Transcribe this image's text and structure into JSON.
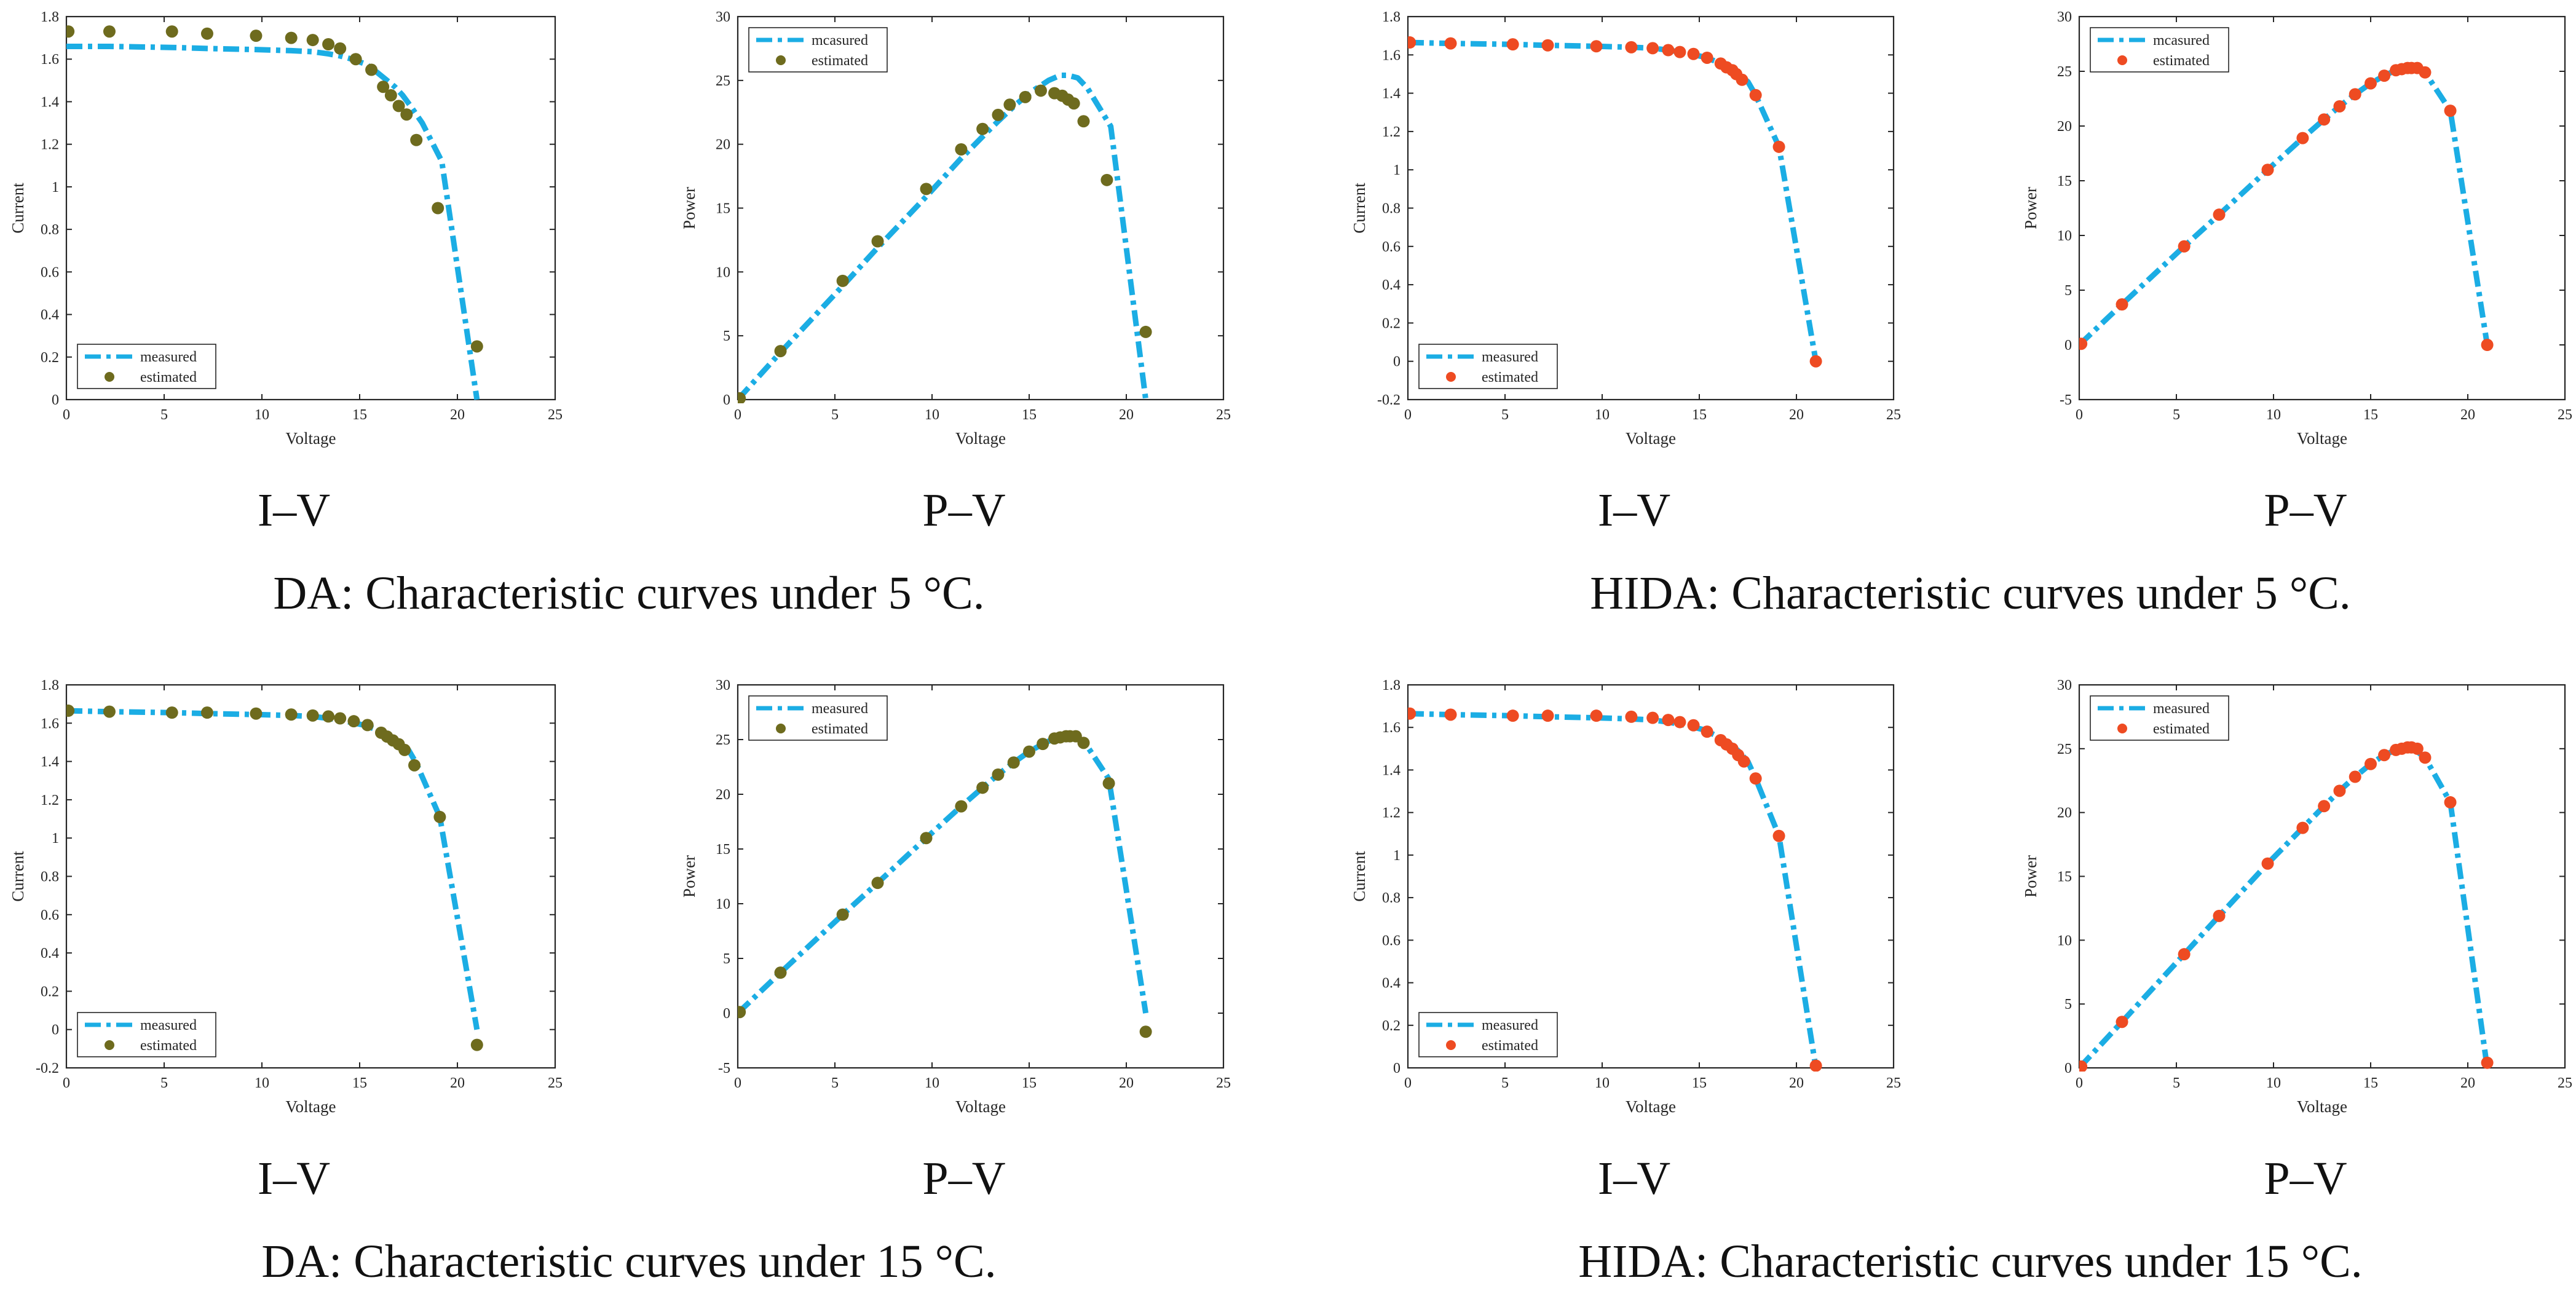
{
  "colors": {
    "measured": "#1BADE4",
    "estimated_da": "#6E6B1E",
    "estimated_hida": "#EE4B22",
    "axis": "#262626"
  },
  "groups": [
    {
      "caption": "DA: Characteristic curves under 5 °C.",
      "sublabels": [
        "I–V",
        "P–V"
      ]
    },
    {
      "caption": "HIDA: Characteristic curves under 5 °C.",
      "sublabels": [
        "I–V",
        "P–V"
      ]
    },
    {
      "caption": "DA: Characteristic curves under 15 °C.",
      "sublabels": [
        "I–V",
        "P–V"
      ]
    },
    {
      "caption": "HIDA: Characteristic curves under 15 °C.",
      "sublabels": [
        "I–V",
        "P–V"
      ]
    }
  ],
  "chart_data": [
    {
      "id": "da-5c-iv",
      "type": "line",
      "title": "",
      "xlabel": "Voltage",
      "ylabel": "Current",
      "xlim": [
        0,
        25
      ],
      "ylim": [
        0,
        1.8
      ],
      "xticks": [
        "0",
        "5",
        "10",
        "15",
        "20",
        "25"
      ],
      "yticks": [
        "0",
        "0.2",
        "0.4",
        "0.6",
        "0.8",
        "1",
        "1.2",
        "1.4",
        "1.6",
        "1.8"
      ],
      "legend_position": "bottom-left",
      "estimated_color": "#6E6B1E",
      "series": [
        {
          "name": "measured",
          "style": "dash-dot",
          "x": [
            0,
            2.2,
            5.4,
            7.2,
            9.7,
            11.5,
            12.6,
            13.4,
            14,
            14.6,
            15.2,
            15.6,
            16,
            16.4,
            16.8,
            17.2,
            17.6,
            18.2,
            19.2,
            21
          ],
          "y": [
            1.66,
            1.66,
            1.655,
            1.65,
            1.645,
            1.64,
            1.635,
            1.625,
            1.615,
            1.6,
            1.58,
            1.56,
            1.53,
            1.5,
            1.47,
            1.43,
            1.38,
            1.3,
            1.12,
            0
          ]
        },
        {
          "name": "estimated",
          "style": "marker",
          "x": [
            0.1,
            2.2,
            5.4,
            7.2,
            9.7,
            11.5,
            12.6,
            13.4,
            14,
            14.8,
            15.6,
            16.2,
            16.6,
            17,
            17.4,
            17.9,
            19,
            21
          ],
          "y": [
            1.73,
            1.73,
            1.73,
            1.72,
            1.71,
            1.7,
            1.69,
            1.67,
            1.65,
            1.6,
            1.55,
            1.47,
            1.43,
            1.38,
            1.34,
            1.22,
            0.9,
            0.25
          ]
        }
      ]
    },
    {
      "id": "da-5c-pv",
      "type": "line",
      "title": "",
      "xlabel": "Voltage",
      "ylabel": "Power",
      "xlim": [
        0,
        25
      ],
      "ylim": [
        0,
        30
      ],
      "xticks": [
        "0",
        "5",
        "10",
        "15",
        "20",
        "25"
      ],
      "yticks": [
        "0",
        "5",
        "10",
        "15",
        "20",
        "25",
        "30"
      ],
      "legend_position": "top-left",
      "estimated_color": "#6E6B1E",
      "series": [
        {
          "name": "mcasured",
          "style": "dash-dot",
          "x": [
            0,
            2.2,
            5.4,
            7.2,
            9.7,
            11.5,
            12.6,
            13.4,
            14.3,
            15.2,
            16,
            16.6,
            17,
            17.5,
            18,
            19.2,
            21
          ],
          "y": [
            0,
            3.7,
            8.9,
            11.9,
            15.9,
            18.9,
            20.6,
            21.8,
            23.1,
            24.2,
            25,
            25.4,
            25.4,
            25.2,
            24.4,
            21.4,
            0
          ]
        },
        {
          "name": "estimated",
          "style": "marker",
          "x": [
            0.1,
            2.2,
            5.4,
            7.2,
            9.7,
            11.5,
            12.6,
            13.4,
            14,
            14.8,
            15.6,
            16.3,
            16.7,
            17,
            17.3,
            17.8,
            19,
            21
          ],
          "y": [
            0.1,
            3.8,
            9.3,
            12.4,
            16.5,
            19.6,
            21.2,
            22.3,
            23.1,
            23.7,
            24.2,
            24,
            23.8,
            23.5,
            23.2,
            21.8,
            17.2,
            5.3
          ]
        }
      ]
    },
    {
      "id": "hida-5c-iv",
      "type": "line",
      "title": "",
      "xlabel": "Voltage",
      "ylabel": "Current",
      "xlim": [
        0,
        25
      ],
      "ylim": [
        -0.2,
        1.8
      ],
      "xticks": [
        "0",
        "5",
        "10",
        "15",
        "20",
        "25"
      ],
      "yticks": [
        "-0.2",
        "0",
        "0.2",
        "0.4",
        "0.6",
        "0.8",
        "1",
        "1.2",
        "1.4",
        "1.6",
        "1.8"
      ],
      "legend_position": "bottom-left",
      "estimated_color": "#EE4B22",
      "series": [
        {
          "name": "measured",
          "style": "dash-dot",
          "x": [
            0,
            2.2,
            5.4,
            7.2,
            9.7,
            11.5,
            12.6,
            13.4,
            14.3,
            15.2,
            15.9,
            16.5,
            17,
            17.5,
            17.9,
            19.1,
            21
          ],
          "y": [
            1.665,
            1.66,
            1.655,
            1.65,
            1.645,
            1.64,
            1.635,
            1.625,
            1.61,
            1.59,
            1.565,
            1.535,
            1.5,
            1.46,
            1.39,
            1.12,
            0
          ]
        },
        {
          "name": "estimated",
          "style": "marker",
          "x": [
            0.1,
            2.2,
            5.4,
            7.2,
            9.7,
            11.5,
            12.6,
            13.4,
            14,
            14.7,
            15.4,
            16.1,
            16.4,
            16.7,
            16.9,
            17.2,
            17.9,
            19.1,
            21
          ],
          "y": [
            1.665,
            1.66,
            1.655,
            1.65,
            1.645,
            1.64,
            1.635,
            1.625,
            1.615,
            1.605,
            1.585,
            1.555,
            1.535,
            1.52,
            1.5,
            1.47,
            1.39,
            1.12,
            0
          ]
        }
      ]
    },
    {
      "id": "hida-5c-pv",
      "type": "line",
      "title": "",
      "xlabel": "Voltage",
      "ylabel": "Power",
      "xlim": [
        0,
        25
      ],
      "ylim": [
        -5,
        30
      ],
      "xticks": [
        "0",
        "5",
        "10",
        "15",
        "20",
        "25"
      ],
      "yticks": [
        "-5",
        "0",
        "5",
        "10",
        "15",
        "20",
        "25",
        "30"
      ],
      "legend_position": "top-left",
      "estimated_color": "#EE4B22",
      "series": [
        {
          "name": "mcasured",
          "style": "dash-dot",
          "x": [
            0,
            2.2,
            5.4,
            7.2,
            9.7,
            11.5,
            12.6,
            13.4,
            14.2,
            15,
            15.7,
            16.3,
            16.8,
            17.2,
            17.8,
            19.1,
            21
          ],
          "y": [
            0,
            3.7,
            9,
            11.9,
            16,
            18.9,
            20.6,
            21.8,
            22.9,
            23.9,
            24.6,
            25.1,
            25.3,
            25.3,
            24.9,
            21.4,
            0
          ]
        },
        {
          "name": "estimated",
          "style": "marker",
          "x": [
            0.1,
            2.2,
            5.4,
            7.2,
            9.7,
            11.5,
            12.6,
            13.4,
            14.2,
            15,
            15.7,
            16.3,
            16.6,
            16.9,
            17.1,
            17.4,
            17.8,
            19.1,
            21
          ],
          "y": [
            0.1,
            3.7,
            9,
            11.9,
            16,
            18.9,
            20.6,
            21.8,
            22.9,
            23.9,
            24.6,
            25.1,
            25.2,
            25.3,
            25.3,
            25.3,
            24.9,
            21.4,
            0
          ]
        }
      ]
    },
    {
      "id": "da-15c-iv",
      "type": "line",
      "title": "",
      "xlabel": "Voltage",
      "ylabel": "Current",
      "xlim": [
        0,
        25
      ],
      "ylim": [
        -0.2,
        1.8
      ],
      "xticks": [
        "0",
        "5",
        "10",
        "15",
        "20",
        "25"
      ],
      "yticks": [
        "-0.2",
        "0",
        "0.2",
        "0.4",
        "0.6",
        "0.8",
        "1",
        "1.2",
        "1.4",
        "1.6",
        "1.8"
      ],
      "legend_position": "bottom-left",
      "estimated_color": "#6E6B1E",
      "series": [
        {
          "name": "measured",
          "style": "dash-dot",
          "x": [
            0,
            2.2,
            5.4,
            7.2,
            9.7,
            11.5,
            12.6,
            13.4,
            14.3,
            15.2,
            15.9,
            16.5,
            17,
            17.5,
            17.9,
            19.1,
            21
          ],
          "y": [
            1.665,
            1.66,
            1.655,
            1.65,
            1.645,
            1.64,
            1.635,
            1.625,
            1.61,
            1.59,
            1.565,
            1.535,
            1.5,
            1.46,
            1.39,
            1.11,
            0
          ]
        },
        {
          "name": "estimated",
          "style": "marker",
          "x": [
            0.1,
            2.2,
            5.4,
            7.2,
            9.7,
            11.5,
            12.6,
            13.4,
            14,
            14.7,
            15.4,
            16.1,
            16.4,
            16.7,
            17,
            17.3,
            17.8,
            19.1,
            21
          ],
          "y": [
            1.665,
            1.66,
            1.655,
            1.655,
            1.65,
            1.645,
            1.64,
            1.635,
            1.625,
            1.61,
            1.59,
            1.55,
            1.53,
            1.51,
            1.49,
            1.46,
            1.38,
            1.11,
            -0.08
          ]
        }
      ]
    },
    {
      "id": "da-15c-pv",
      "type": "line",
      "title": "",
      "xlabel": "Voltage",
      "ylabel": "Power",
      "xlim": [
        0,
        25
      ],
      "ylim": [
        -5,
        30
      ],
      "xticks": [
        "0",
        "5",
        "10",
        "15",
        "20",
        "25"
      ],
      "yticks": [
        "-5",
        "0",
        "5",
        "10",
        "15",
        "20",
        "25",
        "30"
      ],
      "legend_position": "top-left",
      "estimated_color": "#6E6B1E",
      "series": [
        {
          "name": "measured",
          "style": "dash-dot",
          "x": [
            0,
            2.2,
            5.4,
            7.2,
            9.7,
            11.5,
            12.6,
            13.4,
            14.2,
            15,
            15.7,
            16.3,
            16.8,
            17.2,
            17.8,
            19.1,
            21
          ],
          "y": [
            0,
            3.7,
            9,
            11.9,
            16,
            18.9,
            20.6,
            21.8,
            22.9,
            23.9,
            24.6,
            25.1,
            25.3,
            25.3,
            24.9,
            21.4,
            0
          ]
        },
        {
          "name": "estimated",
          "style": "marker",
          "x": [
            0.1,
            2.2,
            5.4,
            7.2,
            9.7,
            11.5,
            12.6,
            13.4,
            14.2,
            15,
            15.7,
            16.3,
            16.6,
            16.9,
            17.1,
            17.4,
            17.8,
            19.1,
            21
          ],
          "y": [
            0.1,
            3.7,
            9,
            11.9,
            16,
            18.9,
            20.6,
            21.8,
            22.9,
            23.9,
            24.6,
            25.1,
            25.2,
            25.3,
            25.3,
            25.3,
            24.7,
            21,
            -1.7
          ]
        }
      ]
    },
    {
      "id": "hida-15c-iv",
      "type": "line",
      "title": "",
      "xlabel": "Voltage",
      "ylabel": "Current",
      "xlim": [
        0,
        25
      ],
      "ylim": [
        0,
        1.8
      ],
      "xticks": [
        "0",
        "5",
        "10",
        "15",
        "20",
        "25"
      ],
      "yticks": [
        "0",
        "0.2",
        "0.4",
        "0.6",
        "0.8",
        "1",
        "1.2",
        "1.4",
        "1.6",
        "1.8"
      ],
      "legend_position": "bottom-left",
      "estimated_color": "#EE4B22",
      "series": [
        {
          "name": "measured",
          "style": "dash-dot",
          "x": [
            0,
            2.2,
            5.4,
            7.2,
            9.7,
            11.5,
            12.6,
            13.4,
            14.3,
            15.2,
            15.9,
            16.5,
            17,
            17.5,
            17.9,
            19.1,
            21
          ],
          "y": [
            1.665,
            1.66,
            1.655,
            1.65,
            1.645,
            1.64,
            1.635,
            1.625,
            1.61,
            1.59,
            1.56,
            1.53,
            1.49,
            1.44,
            1.36,
            1.09,
            0
          ]
        },
        {
          "name": "estimated",
          "style": "marker",
          "x": [
            0.1,
            2.2,
            5.4,
            7.2,
            9.7,
            11.5,
            12.6,
            13.4,
            14,
            14.7,
            15.4,
            16.1,
            16.4,
            16.7,
            17,
            17.3,
            17.9,
            19.1,
            21
          ],
          "y": [
            1.665,
            1.66,
            1.655,
            1.655,
            1.655,
            1.65,
            1.645,
            1.635,
            1.625,
            1.61,
            1.58,
            1.54,
            1.52,
            1.5,
            1.47,
            1.44,
            1.36,
            1.09,
            0.01
          ]
        }
      ]
    },
    {
      "id": "hida-15c-pv",
      "type": "line",
      "title": "",
      "xlabel": "Voltage",
      "ylabel": "Power",
      "xlim": [
        0,
        25
      ],
      "ylim": [
        0,
        30
      ],
      "xticks": [
        "0",
        "5",
        "10",
        "15",
        "20",
        "25"
      ],
      "yticks": [
        "0",
        "5",
        "10",
        "15",
        "20",
        "25",
        "30"
      ],
      "legend_position": "top-left",
      "estimated_color": "#EE4B22",
      "series": [
        {
          "name": "measured",
          "style": "dash-dot",
          "x": [
            0,
            2.2,
            5.4,
            7.2,
            9.7,
            11.5,
            12.6,
            13.4,
            14.2,
            15,
            15.7,
            16.3,
            16.8,
            17.2,
            17.8,
            19.1,
            21
          ],
          "y": [
            0,
            3.6,
            8.9,
            11.9,
            16,
            18.8,
            20.5,
            21.7,
            22.8,
            23.8,
            24.5,
            24.9,
            25.1,
            25,
            24.3,
            20.8,
            0
          ]
        },
        {
          "name": "estimated",
          "style": "marker",
          "x": [
            0.1,
            2.2,
            5.4,
            7.2,
            9.7,
            11.5,
            12.6,
            13.4,
            14.2,
            15,
            15.7,
            16.3,
            16.6,
            16.9,
            17.1,
            17.4,
            17.8,
            19.1,
            21
          ],
          "y": [
            0.1,
            3.6,
            8.9,
            11.9,
            16,
            18.8,
            20.5,
            21.7,
            22.8,
            23.8,
            24.5,
            24.9,
            25,
            25.1,
            25.1,
            25,
            24.3,
            20.8,
            0.4
          ]
        }
      ]
    }
  ]
}
